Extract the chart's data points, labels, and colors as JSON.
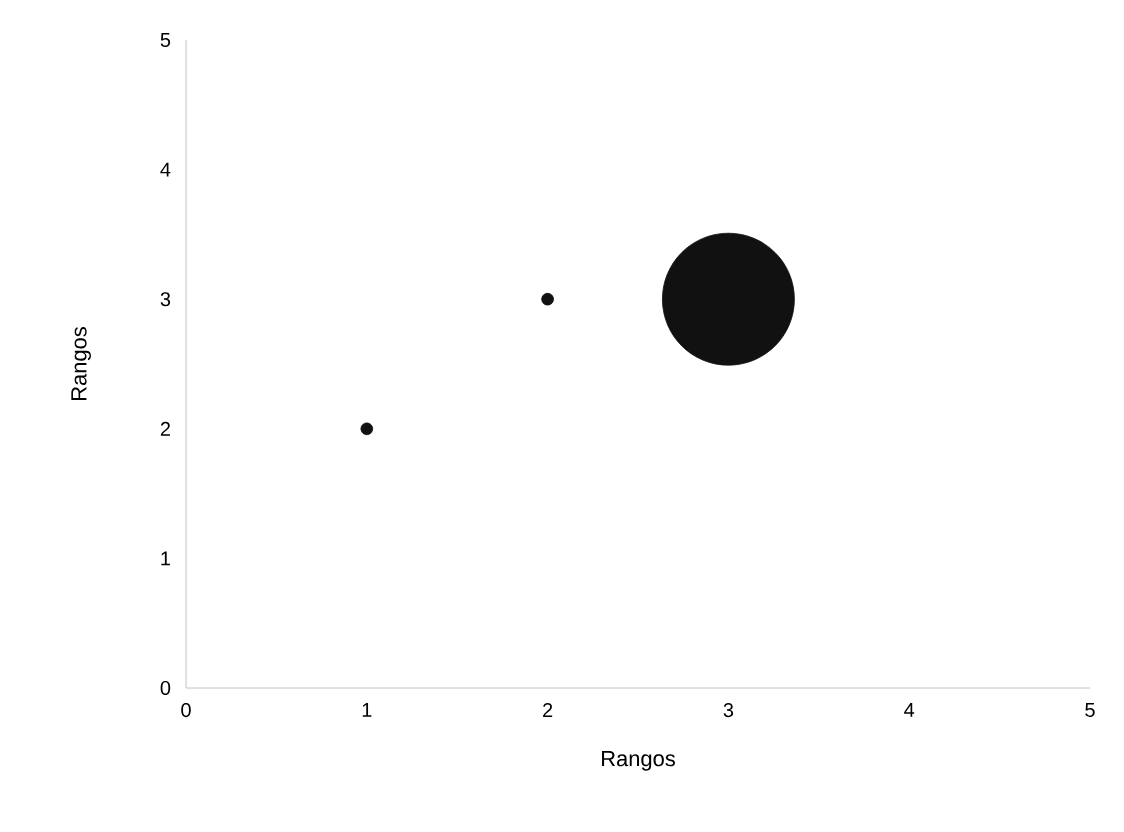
{
  "chart_data": {
    "type": "bubble",
    "xlabel": "Rangos",
    "ylabel": "Rangos",
    "x": [
      1,
      2,
      3
    ],
    "values": [
      2,
      3,
      3
    ],
    "sizes": [
      0.008,
      0.008,
      1
    ],
    "color": "#111111",
    "xlim": [
      0,
      5
    ],
    "xticks": [
      0,
      1,
      2,
      3,
      4,
      5
    ],
    "ylim": [
      0,
      5
    ],
    "yticks": [
      0,
      1,
      2,
      3,
      4,
      5
    ],
    "grid": false
  }
}
